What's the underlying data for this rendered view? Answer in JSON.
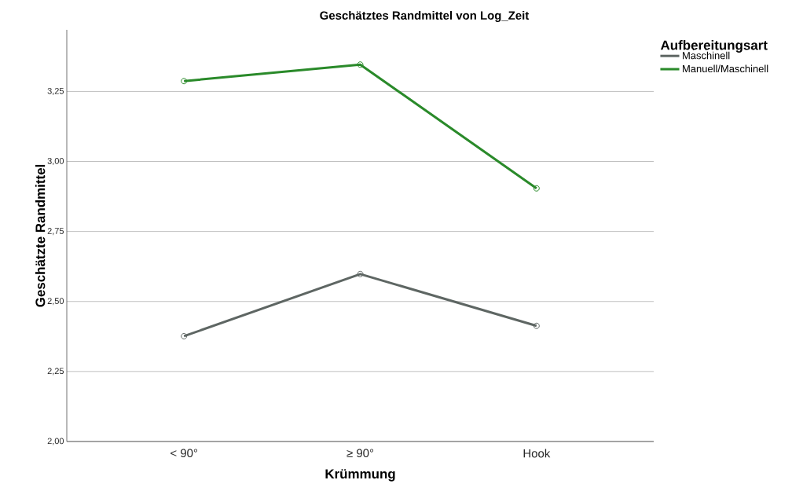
{
  "chart_data": {
    "type": "line",
    "title": "Geschätztes Randmittel von Log_Zeit",
    "xlabel": "Krümmung",
    "ylabel": "Geschätzte Randmittel",
    "legend_title": "Aufbereitungsart",
    "categories": [
      "< 90°",
      "≥ 90°",
      "Hook"
    ],
    "series": [
      {
        "name": "Maschinell",
        "color": "#5e6663",
        "values": [
          2.376,
          2.598,
          2.413
        ]
      },
      {
        "name": "Manuell/Maschinell",
        "color": "#2a8a2a",
        "values": [
          3.287,
          3.346,
          2.904
        ]
      }
    ],
    "ylim": [
      2.0,
      3.47
    ],
    "yticks": [
      {
        "value": 2.0,
        "label": "2,00"
      },
      {
        "value": 2.25,
        "label": "2,25"
      },
      {
        "value": 2.5,
        "label": "2,50"
      },
      {
        "value": 2.75,
        "label": "2,75"
      },
      {
        "value": 3.0,
        "label": "3,00"
      },
      {
        "value": 3.25,
        "label": "3,25"
      }
    ],
    "grid": "y",
    "legend": "top right",
    "marker": "circle",
    "line_style": "solid"
  }
}
